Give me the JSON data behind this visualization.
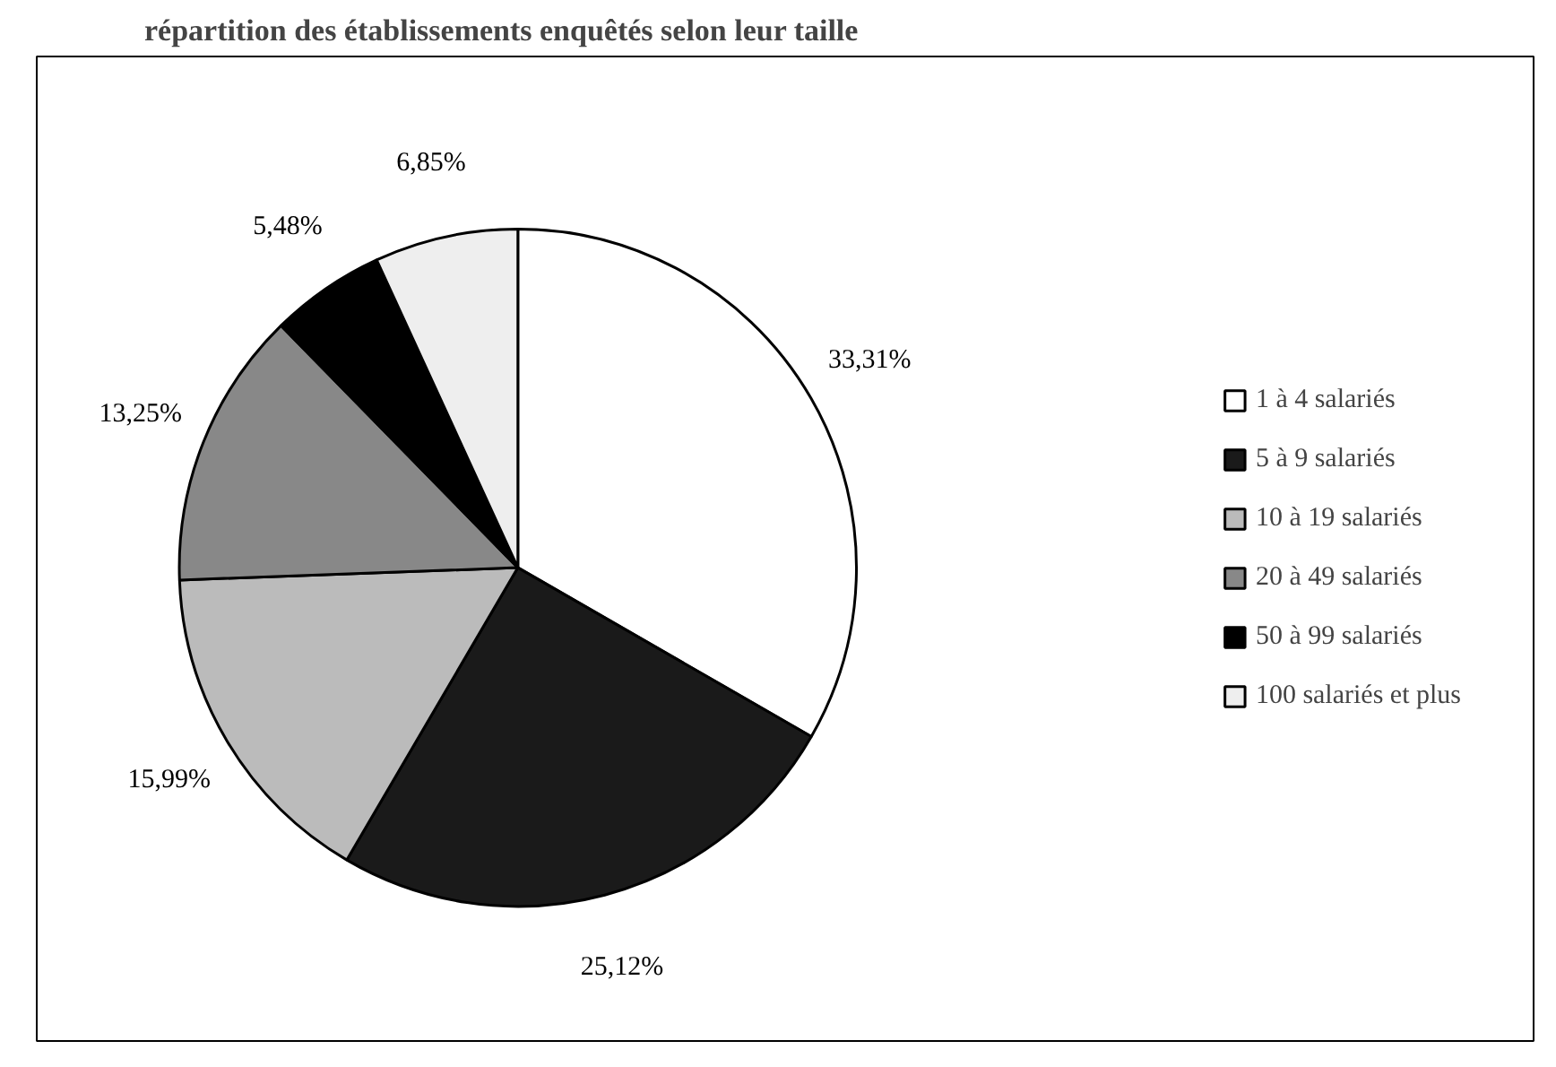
{
  "chart_data": {
    "type": "pie",
    "title": "répartition des établissements enquêtés selon leur taille",
    "categories": [
      "1 à 4 salariés",
      "5 à 9 salariés",
      "10 à 19 salariés",
      "20 à 49 salariés",
      "50 à 99 salariés",
      "100 salariés et plus"
    ],
    "values": [
      33.31,
      25.12,
      15.99,
      13.25,
      5.48,
      6.85
    ],
    "value_labels": [
      "33,31%",
      "25,12%",
      "15,99%",
      "13,25%",
      "5,48%",
      "6,85%"
    ],
    "colors": [
      "#ffffff",
      "#1a1a1a",
      "#bbbbbb",
      "#888888",
      "#000000",
      "#eeeeee"
    ],
    "legend": "right"
  }
}
